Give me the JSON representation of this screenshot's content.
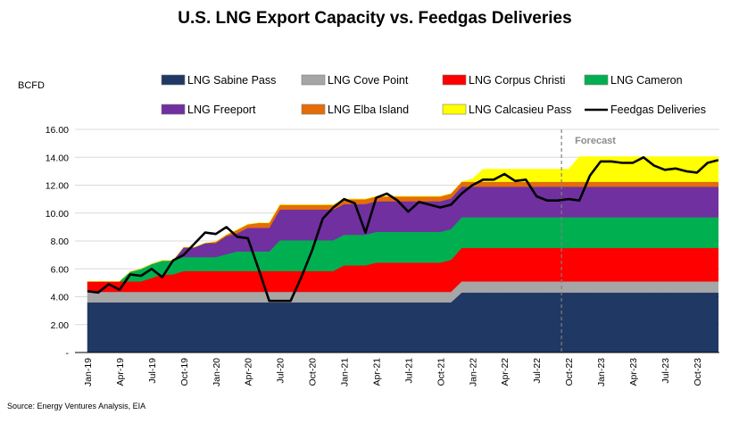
{
  "chart_data": {
    "type": "area",
    "title": "U.S. LNG Export Capacity vs. Feedgas Deliveries",
    "ylabel": "BCFD",
    "ylim": [
      0,
      16
    ],
    "yticks": [
      "16.00",
      "14.00",
      "12.00",
      "10.00",
      "8.00",
      "6.00",
      "4.00",
      "2.00",
      "-"
    ],
    "ytick_values": [
      16,
      14,
      12,
      10,
      8,
      6,
      4,
      2,
      0
    ],
    "x_start": "Jan-19",
    "x_end": "Dec-23",
    "xtick_labels": [
      "Jan-19",
      "Apr-19",
      "Jul-19",
      "Oct-19",
      "Jan-20",
      "Apr-20",
      "Jul-20",
      "Oct-20",
      "Jan-21",
      "Apr-21",
      "Jul-21",
      "Oct-21",
      "Jan-22",
      "Apr-22",
      "Jul-22",
      "Oct-22",
      "Jan-23",
      "Apr-23",
      "Jul-23",
      "Oct-23"
    ],
    "grid": true,
    "forecast_label": "Forecast",
    "forecast_start": "Sep-22",
    "source": "Source: Energy Ventures Analysis, EIA",
    "series": [
      {
        "name": "LNG Sabine Pass",
        "color": "#1f3864",
        "kind": "area",
        "values": [
          3.6,
          3.6,
          3.6,
          3.6,
          3.6,
          3.6,
          3.6,
          3.6,
          3.6,
          3.6,
          3.6,
          3.6,
          3.6,
          3.6,
          3.6,
          3.6,
          3.6,
          3.6,
          3.6,
          3.6,
          3.6,
          3.6,
          3.6,
          3.6,
          3.6,
          3.6,
          3.6,
          3.6,
          3.6,
          3.6,
          3.6,
          3.6,
          3.6,
          3.6,
          3.6,
          4.3,
          4.3,
          4.3,
          4.3,
          4.3,
          4.3,
          4.3,
          4.3,
          4.3,
          4.3,
          4.3,
          4.3,
          4.3,
          4.3,
          4.3,
          4.3,
          4.3,
          4.3,
          4.3,
          4.3,
          4.3,
          4.3,
          4.3,
          4.3,
          4.3
        ]
      },
      {
        "name": "LNG Cove Point",
        "color": "#a6a6a6",
        "kind": "area",
        "values": [
          0.75,
          0.75,
          0.75,
          0.75,
          0.75,
          0.75,
          0.75,
          0.75,
          0.75,
          0.75,
          0.75,
          0.75,
          0.75,
          0.75,
          0.75,
          0.75,
          0.75,
          0.75,
          0.75,
          0.75,
          0.75,
          0.75,
          0.75,
          0.75,
          0.75,
          0.75,
          0.75,
          0.75,
          0.75,
          0.75,
          0.75,
          0.75,
          0.75,
          0.75,
          0.75,
          0.8,
          0.8,
          0.8,
          0.8,
          0.8,
          0.8,
          0.8,
          0.8,
          0.8,
          0.8,
          0.8,
          0.8,
          0.8,
          0.8,
          0.8,
          0.8,
          0.8,
          0.8,
          0.8,
          0.8,
          0.8,
          0.8,
          0.8,
          0.8,
          0.8
        ]
      },
      {
        "name": "LNG Corpus Christi",
        "color": "#ff0000",
        "kind": "area",
        "values": [
          0.75,
          0.75,
          0.75,
          0.75,
          0.75,
          0.75,
          1.0,
          1.25,
          1.25,
          1.5,
          1.5,
          1.5,
          1.5,
          1.5,
          1.5,
          1.5,
          1.5,
          1.5,
          1.5,
          1.5,
          1.5,
          1.5,
          1.5,
          1.5,
          1.9,
          1.9,
          1.9,
          2.1,
          2.1,
          2.1,
          2.1,
          2.1,
          2.1,
          2.1,
          2.3,
          2.4,
          2.4,
          2.4,
          2.4,
          2.4,
          2.4,
          2.4,
          2.4,
          2.4,
          2.4,
          2.4,
          2.4,
          2.4,
          2.4,
          2.4,
          2.4,
          2.4,
          2.4,
          2.4,
          2.4,
          2.4,
          2.4,
          2.4,
          2.4,
          2.4
        ]
      },
      {
        "name": "LNG Cameron",
        "color": "#00b050",
        "kind": "area",
        "values": [
          0,
          0,
          0,
          0,
          0.7,
          0.9,
          1.0,
          1.0,
          1.0,
          1.0,
          1.0,
          1.0,
          1.0,
          1.2,
          1.4,
          1.4,
          1.4,
          1.4,
          2.2,
          2.2,
          2.2,
          2.2,
          2.2,
          2.2,
          2.2,
          2.2,
          2.2,
          2.2,
          2.2,
          2.2,
          2.2,
          2.2,
          2.2,
          2.2,
          2.2,
          2.2,
          2.2,
          2.2,
          2.2,
          2.2,
          2.2,
          2.2,
          2.2,
          2.2,
          2.2,
          2.2,
          2.2,
          2.2,
          2.2,
          2.2,
          2.2,
          2.2,
          2.2,
          2.2,
          2.2,
          2.2,
          2.2,
          2.2,
          2.2,
          2.2
        ]
      },
      {
        "name": "LNG Freeport",
        "color": "#7030a0",
        "kind": "area",
        "values": [
          0,
          0,
          0,
          0,
          0,
          0,
          0,
          0,
          0,
          0.7,
          0.7,
          1.0,
          1.0,
          1.3,
          1.3,
          1.7,
          1.7,
          1.7,
          2.2,
          2.2,
          2.2,
          2.2,
          2.2,
          2.2,
          2.2,
          2.2,
          2.2,
          2.2,
          2.2,
          2.2,
          2.2,
          2.2,
          2.2,
          2.2,
          2.2,
          2.2,
          2.2,
          2.2,
          2.2,
          2.2,
          2.2,
          2.2,
          2.2,
          2.2,
          2.2,
          2.2,
          2.2,
          2.2,
          2.2,
          2.2,
          2.2,
          2.2,
          2.2,
          2.2,
          2.2,
          2.2,
          2.2,
          2.2,
          2.2,
          2.2
        ]
      },
      {
        "name": "LNG Elba Island",
        "color": "#e46c0a",
        "kind": "area",
        "values": [
          0,
          0,
          0,
          0,
          0,
          0,
          0,
          0,
          0,
          0,
          0,
          0,
          0.1,
          0.1,
          0.25,
          0.25,
          0.35,
          0.35,
          0.35,
          0.35,
          0.35,
          0.35,
          0.35,
          0.35,
          0.35,
          0.35,
          0.35,
          0.35,
          0.35,
          0.35,
          0.35,
          0.35,
          0.35,
          0.35,
          0.35,
          0.35,
          0.35,
          0.35,
          0.35,
          0.35,
          0.35,
          0.35,
          0.35,
          0.35,
          0.35,
          0.35,
          0.35,
          0.35,
          0.35,
          0.35,
          0.35,
          0.35,
          0.35,
          0.35,
          0.35,
          0.35,
          0.35,
          0.35,
          0.35,
          0.35
        ]
      },
      {
        "name": "LNG Calcasieu Pass",
        "color": "#ffff00",
        "kind": "area",
        "values": [
          0,
          0,
          0,
          0,
          0,
          0,
          0,
          0,
          0,
          0,
          0,
          0,
          0,
          0,
          0,
          0,
          0,
          0,
          0,
          0,
          0,
          0,
          0,
          0,
          0,
          0,
          0,
          0,
          0,
          0,
          0,
          0,
          0,
          0,
          0,
          0,
          0.2,
          0.9,
          0.9,
          0.9,
          0.9,
          0.9,
          0.9,
          0.9,
          0.9,
          0.9,
          1.8,
          1.8,
          1.8,
          1.8,
          1.8,
          1.8,
          1.8,
          1.8,
          1.8,
          1.8,
          1.8,
          1.8,
          1.8,
          1.8
        ]
      },
      {
        "name": "Feedgas Deliveries",
        "color": "#000000",
        "kind": "line",
        "values": [
          4.4,
          4.3,
          4.9,
          4.5,
          5.6,
          5.5,
          6.0,
          5.4,
          6.6,
          7.0,
          7.8,
          8.6,
          8.5,
          9.0,
          8.3,
          8.2,
          6.0,
          3.7,
          3.7,
          3.7,
          5.4,
          7.3,
          9.6,
          10.4,
          11.0,
          10.7,
          8.6,
          11.1,
          11.4,
          10.9,
          10.1,
          10.8,
          10.6,
          10.4,
          10.6,
          11.4,
          12.0,
          12.4,
          12.4,
          12.8,
          12.3,
          12.4,
          11.2,
          10.9,
          10.9,
          11.0,
          10.9,
          12.7,
          13.7,
          13.7,
          13.6,
          13.6,
          14.0,
          13.4,
          13.1,
          13.2,
          13.0,
          12.9,
          13.6,
          13.8
        ]
      }
    ]
  },
  "legend": [
    {
      "label": "LNG Sabine Pass",
      "color": "#1f3864",
      "kind": "box"
    },
    {
      "label": "LNG Cove Point",
      "color": "#a6a6a6",
      "kind": "box"
    },
    {
      "label": "LNG Corpus Christi",
      "color": "#ff0000",
      "kind": "box"
    },
    {
      "label": "LNG Cameron",
      "color": "#00b050",
      "kind": "box"
    },
    {
      "label": "LNG Freeport",
      "color": "#7030a0",
      "kind": "box"
    },
    {
      "label": "LNG Elba Island",
      "color": "#e46c0a",
      "kind": "box"
    },
    {
      "label": "LNG Calcasieu Pass",
      "color": "#ffff00",
      "kind": "box"
    },
    {
      "label": "Feedgas Deliveries",
      "color": "#000000",
      "kind": "line"
    }
  ]
}
